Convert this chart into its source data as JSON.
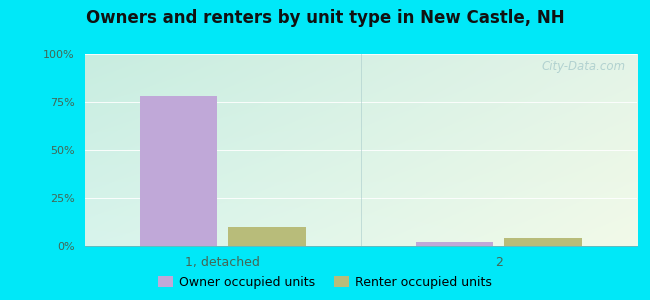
{
  "title": "Owners and renters by unit type in New Castle, NH",
  "categories": [
    "1, detached",
    "2"
  ],
  "owner_values": [
    78,
    2
  ],
  "renter_values": [
    10,
    4
  ],
  "owner_color": "#c0a8d8",
  "renter_color": "#b8bc7a",
  "ylim": [
    0,
    100
  ],
  "yticks": [
    0,
    25,
    50,
    75,
    100
  ],
  "ytick_labels": [
    "0%",
    "25%",
    "50%",
    "75%",
    "100%"
  ],
  "bar_width": 0.28,
  "outer_color": "#00e8f8",
  "legend_owner": "Owner occupied units",
  "legend_renter": "Renter occupied units",
  "watermark": "City-Data.com",
  "bg_color_topleft": "#c0ede0",
  "bg_color_topright": "#e8f4e8",
  "bg_color_bottomleft": "#d8f4e8",
  "bg_color_bottomright": "#f0f8e8"
}
